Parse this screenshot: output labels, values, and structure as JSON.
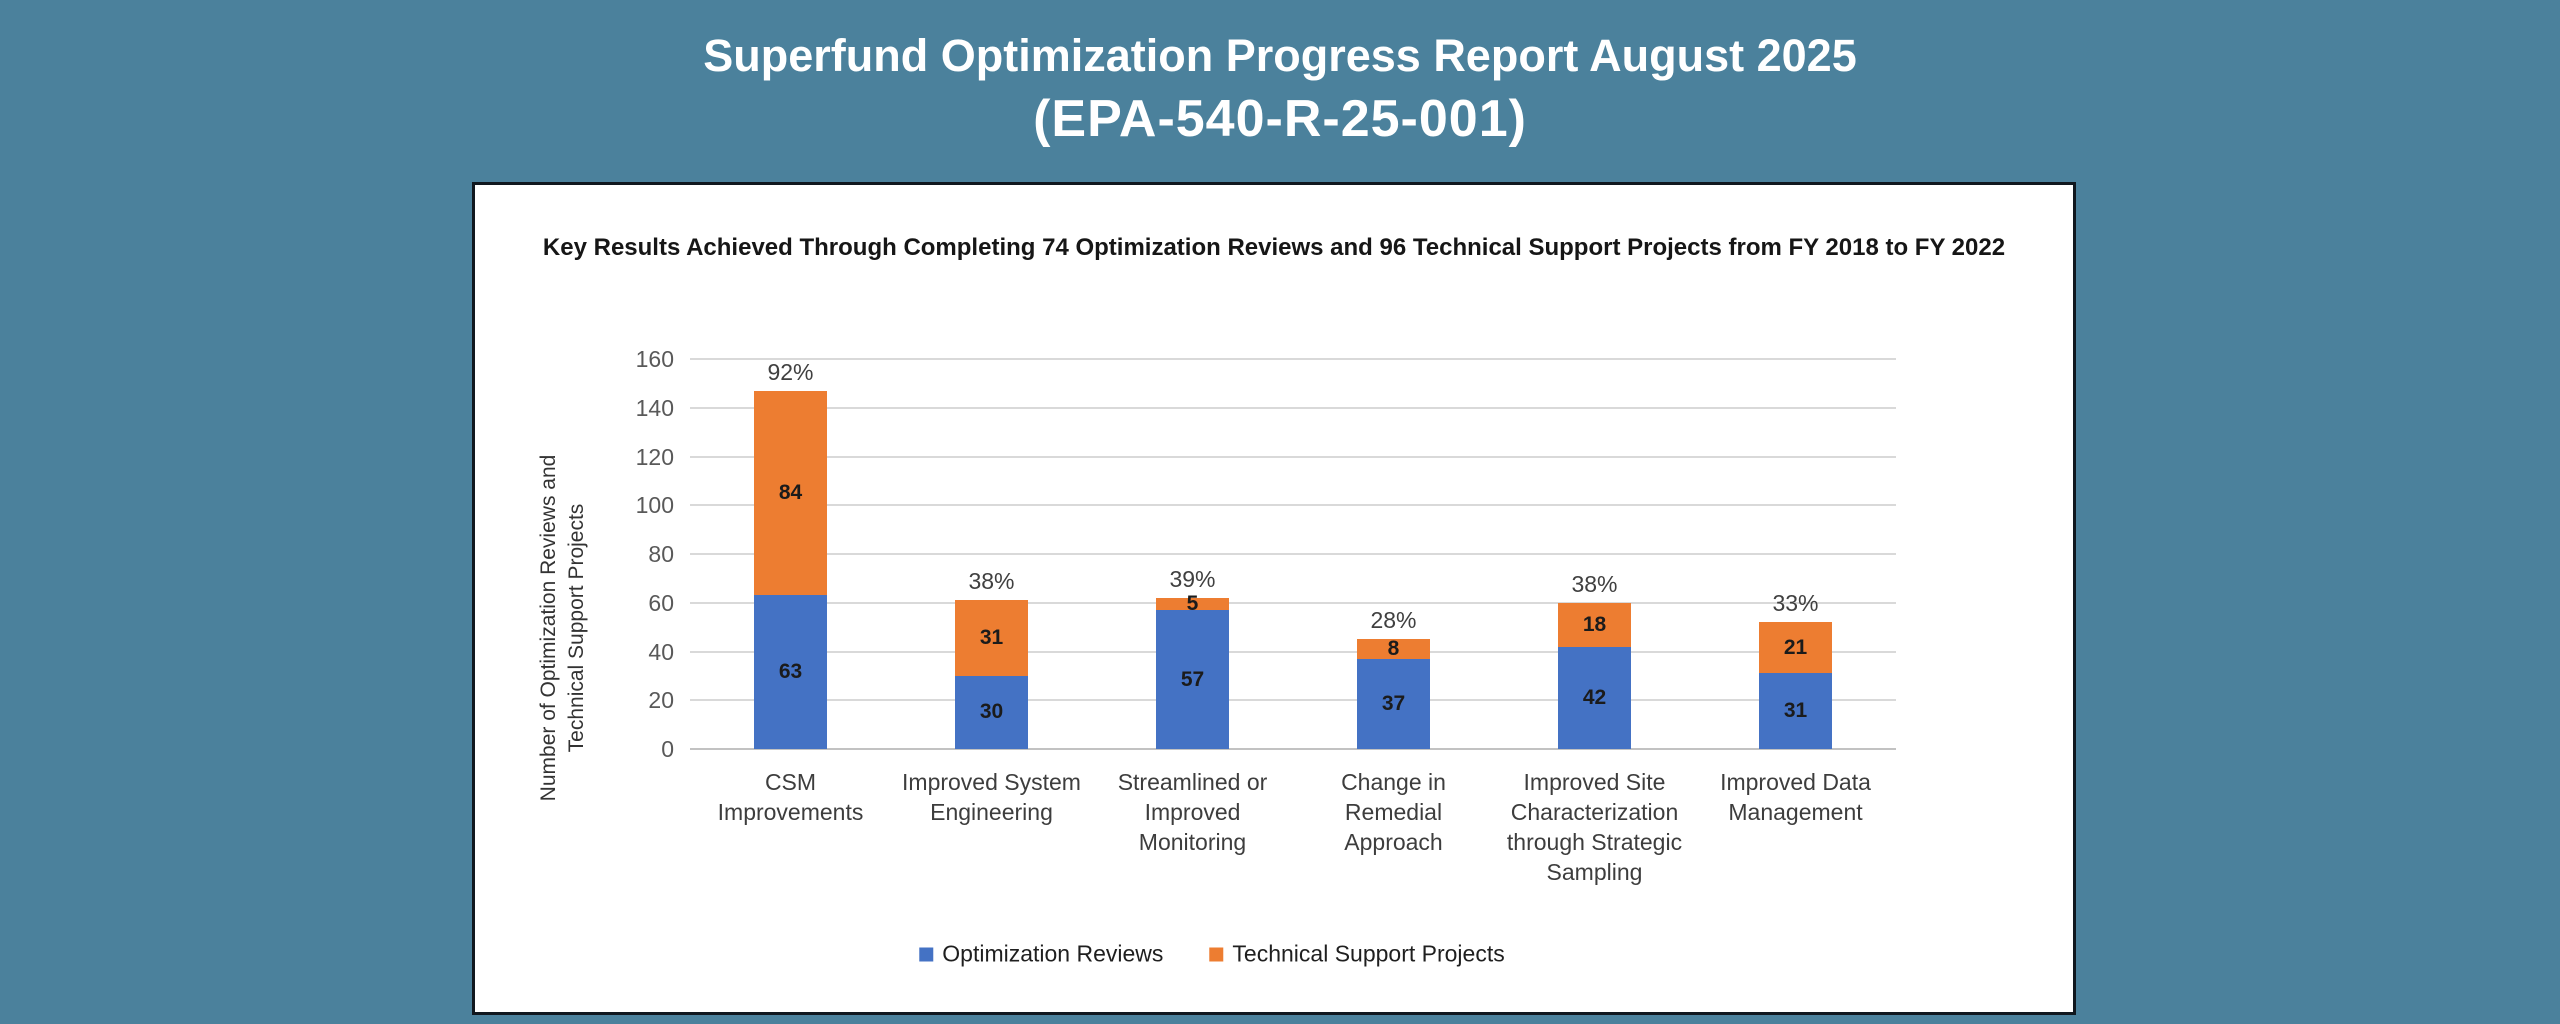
{
  "header": {
    "title_line1": "Superfund Optimization Progress Report August 2025",
    "title_line2": "(EPA-540-R-25-001)"
  },
  "colors": {
    "page_background": "#4B819C",
    "panel_background": "#FFFFFF",
    "panel_border": "#10171E",
    "gridline": "#D9D9D9",
    "axis_line": "#C2C2C2",
    "optimization_reviews_blue": "#4472C4",
    "technical_support_orange": "#ED7D31"
  },
  "chart_data": {
    "type": "bar",
    "stacked": true,
    "title": "Key Results Achieved Through Completing 74 Optimization Reviews and 96 Technical Support Projects from FY 2018 to FY 2022",
    "ylabel_lines": [
      "Number of Optimization Reviews and",
      "Technical Support Projects"
    ],
    "xlabel": "",
    "ylim": [
      0,
      160
    ],
    "yticks": [
      0,
      20,
      40,
      60,
      80,
      100,
      120,
      140,
      160
    ],
    "grid": true,
    "legend_position": "bottom",
    "categories": [
      [
        "CSM",
        "Improvements"
      ],
      [
        "Improved System",
        "Engineering"
      ],
      [
        "Streamlined or",
        "Improved",
        "Monitoring"
      ],
      [
        "Change in",
        "Remedial",
        "Approach"
      ],
      [
        "Improved Site",
        "Characterization",
        "through Strategic",
        "Sampling"
      ],
      [
        "Improved Data",
        "Management"
      ]
    ],
    "series": [
      {
        "name": "Optimization Reviews",
        "color": "#4472C4",
        "values": [
          63,
          30,
          57,
          37,
          42,
          31
        ]
      },
      {
        "name": "Technical Support Projects",
        "color": "#ED7D31",
        "values": [
          84,
          31,
          5,
          8,
          18,
          21
        ]
      }
    ],
    "stack_total_labels": [
      "92%",
      "38%",
      "39%",
      "28%",
      "38%",
      "33%"
    ]
  }
}
